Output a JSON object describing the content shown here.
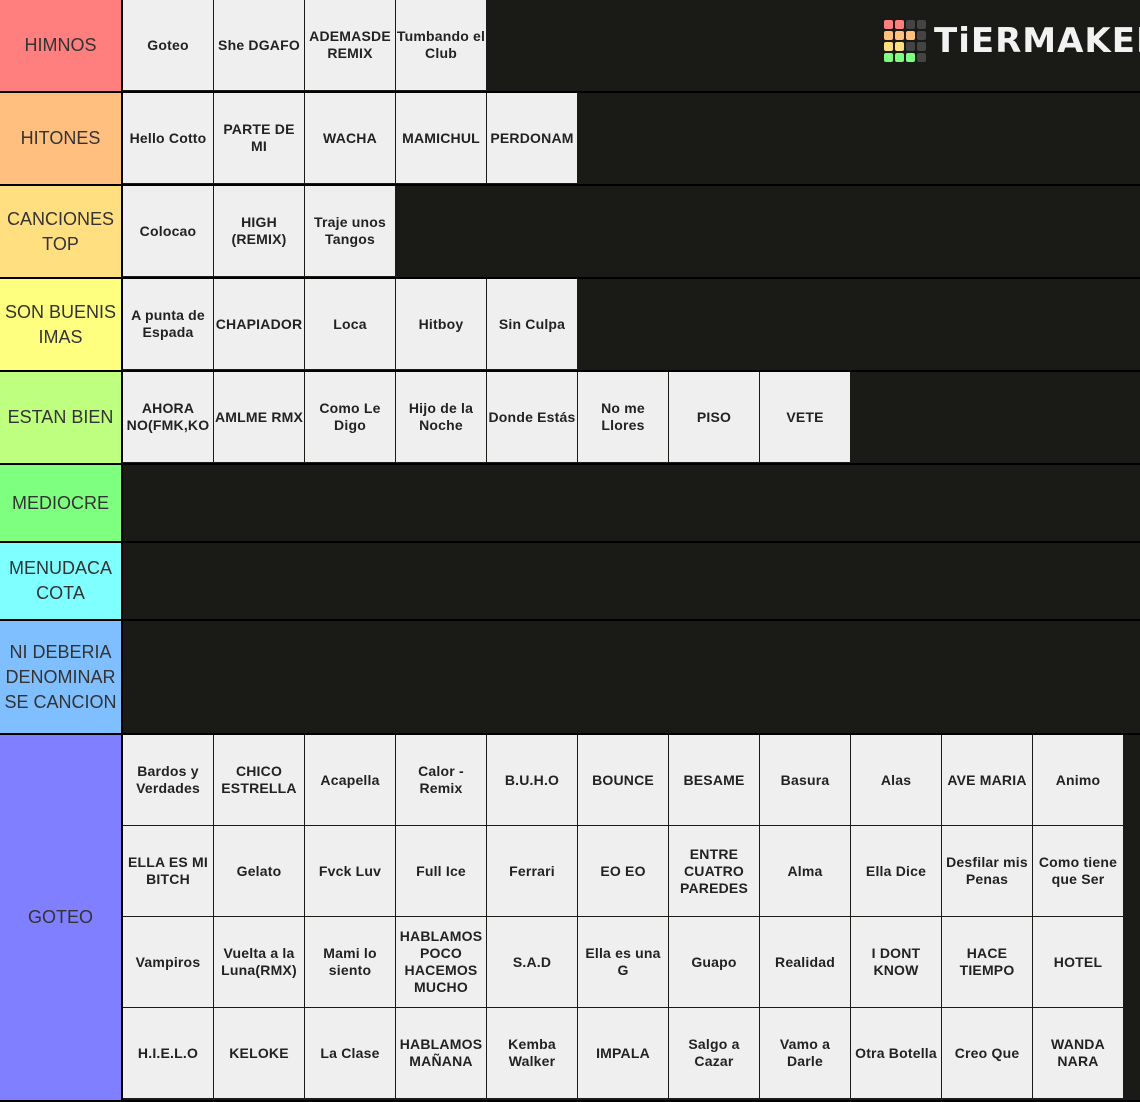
{
  "logo": "TiERMAKER",
  "tiers": [
    {
      "label": "HIMNOS",
      "color": "#ff7f7f",
      "items": [
        "Goteo",
        "She DGAFO",
        "ADEMASDE REMIX",
        "Tumbando el Club"
      ]
    },
    {
      "label": "HITONES",
      "color": "#ffbf7f",
      "items": [
        "Hello Cotto",
        "PARTE DE MI",
        "WACHA",
        "MAMICHUL",
        "PERDONAM"
      ]
    },
    {
      "label": "CANCIONES TOP",
      "color": "#ffdf7f",
      "items": [
        "Colocao",
        "HIGH (REMIX)",
        "Traje unos Tangos"
      ]
    },
    {
      "label": "SON BUENISIMAS",
      "color": "#ffff7f",
      "items": [
        "A punta de Espada",
        "CHAPIADOR",
        "Loca",
        "Hitboy",
        "Sin Culpa"
      ]
    },
    {
      "label": "ESTAN BIEN",
      "color": "#bfff7f",
      "items": [
        "AHORA NO(FMK,KO",
        "AMLME RMX",
        "Como Le Digo",
        "Hijo de la Noche",
        "Donde Estás",
        "No me Llores",
        "PISO",
        "VETE"
      ]
    },
    {
      "label": "MEDIOCRE",
      "color": "#7fff7f",
      "items": []
    },
    {
      "label": "MENUDACACOTA",
      "color": "#7fffff",
      "items": []
    },
    {
      "label": "NI DEBERIA DENOMINARSE CANCION",
      "color": "#7fbfff",
      "items": []
    },
    {
      "label": "GOTEO",
      "color": "#7f7fff",
      "items": [
        "Bardos y Verdades",
        "CHICO ESTRELLA",
        "Acapella",
        "Calor - Remix",
        "B.U.H.O",
        "BOUNCE",
        "BESAME",
        "Basura",
        "Alas",
        "AVE MARIA",
        "Animo",
        "ELLA ES MI BITCH",
        "Gelato",
        "Fvck Luv",
        "Full Ice",
        "Ferrari",
        "EO EO",
        "ENTRE CUATRO PAREDES",
        "Alma",
        "Ella Dice",
        "Desfilar mis Penas",
        "Como tiene que Ser",
        "Vampiros",
        "Vuelta a la Luna(RMX)",
        "Mami lo siento",
        "HABLAMOS POCO HACEMOS MUCHO",
        "S.A.D",
        "Ella es una G",
        "Guapo",
        "Realidad",
        "I DONT KNOW",
        "HACE TIEMPO",
        "HOTEL",
        "H.I.E.L.O",
        "KELOKE",
        "La Clase",
        "HABLAMOS MAÑANA",
        "Kemba Walker",
        "IMPALA",
        "Salgo a Cazar",
        "Vamo a Darle",
        "Otra Botella",
        "Creo Que",
        "WANDA NARA"
      ]
    }
  ]
}
